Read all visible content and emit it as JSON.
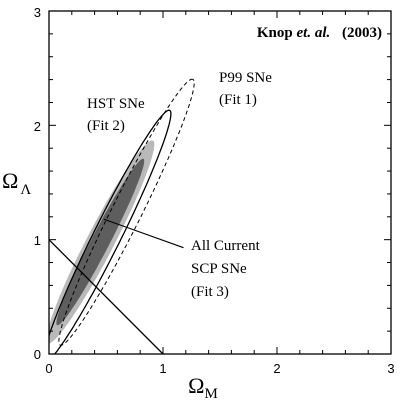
{
  "chart_data": {
    "type": "contour",
    "title": "",
    "credit": {
      "author": "Knop",
      "etal": "et. al.",
      "year": "(2003)"
    },
    "xlabel": {
      "symbol": "Ω",
      "subscript": "M"
    },
    "ylabel": {
      "symbol": "Ω",
      "subscript": "Λ"
    },
    "xlim": [
      0,
      3
    ],
    "ylim": [
      0,
      3
    ],
    "xticks": [
      "0",
      "1",
      "2",
      "3"
    ],
    "yticks": [
      "0",
      "1",
      "2",
      "3"
    ],
    "grid": false,
    "series": [
      {
        "label_lines": [
          "HST SNe",
          "(Fit 2)"
        ],
        "style": "solid",
        "center": [
          0.51,
          1.03
        ],
        "semi_axis_major": 1.23,
        "semi_axis_minor": 0.12,
        "angle_deg": 63.5
      },
      {
        "label_lines": [
          "P99 SNe",
          "(Fit 1)"
        ],
        "style": "dashed",
        "center": [
          0.68,
          1.24
        ],
        "semi_axis_major": 1.3,
        "semi_axis_minor": 0.13,
        "angle_deg": 63.4
      },
      {
        "label_lines": [
          "All Current",
          "SCP SNe",
          "(Fit 3)"
        ],
        "style": "filled",
        "fill_outer": "#b9b9b9",
        "fill_inner": "#5e5e5e",
        "outer": {
          "center": [
            0.45,
            0.98
          ],
          "semi_axis_major": 1.0,
          "semi_axis_minor": 0.12,
          "angle_deg": 62.5
        },
        "inner": {
          "center": [
            0.45,
            0.98
          ],
          "semi_axis_major": 0.82,
          "semi_axis_minor": 0.08,
          "angle_deg": 62.5
        }
      }
    ],
    "reference_lines": [
      {
        "name": "flat-universe-line",
        "points": [
          [
            0,
            1
          ],
          [
            1,
            0
          ]
        ]
      }
    ],
    "leader_line": {
      "from": [
        1.18,
        0.93
      ],
      "to": [
        0.48,
        1.18
      ]
    }
  }
}
